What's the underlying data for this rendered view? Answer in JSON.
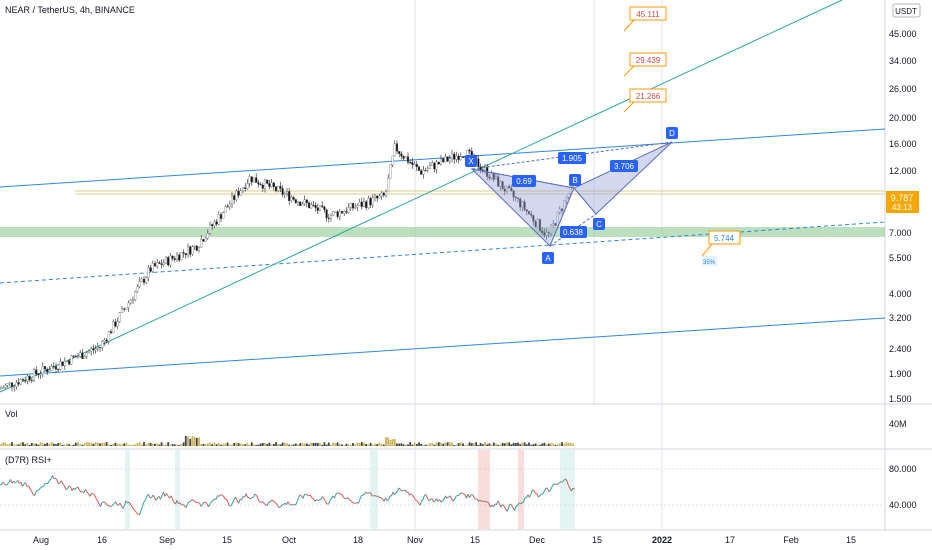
{
  "header": {
    "symbol_title": "NEAR / TetherUS, 4h, BINANCE",
    "currency_badge": "USDT"
  },
  "colors": {
    "up_candle": "#ffffff",
    "down_candle": "#222222",
    "wick": "#222222",
    "channel_blue": "#2e86de",
    "trend_green": "#26a69a",
    "support_zone": "#a5d6a7",
    "pattern_fill": "#9fa8da",
    "pattern_stroke": "#5c6bc0",
    "label_blue": "#2962ff",
    "target_orange": "#ff9800",
    "price_tag": "#f7a600",
    "rsi_up": "#26a69a",
    "rsi_down": "#ef5350"
  },
  "price_axis": {
    "labels": [
      "45.000",
      "34.000",
      "26.000",
      "20.000",
      "16.000",
      "12.000",
      "7.000",
      "5.500",
      "4.000",
      "3.200",
      "2.400",
      "1.900",
      "1.500"
    ],
    "current_price": "9.787",
    "countdown": "43:13"
  },
  "time_axis": {
    "labels": [
      "Aug",
      "16",
      "Sep",
      "15",
      "Oct",
      "18",
      "Nov",
      "15",
      "Dec",
      "15",
      "2022",
      "17",
      "Feb",
      "15"
    ]
  },
  "harmonic_pattern": {
    "points": [
      "X",
      "A",
      "B",
      "C",
      "D"
    ],
    "ratios": [
      "0.69",
      "1.905",
      "3.706",
      "0.638"
    ]
  },
  "targets": [
    "45.111",
    "29.439",
    "21.266"
  ],
  "support_label": "5.744",
  "support_pct": "35%",
  "volume_panel": {
    "title": "Vol",
    "axis_label": "40M"
  },
  "rsi_panel": {
    "title": "(D7R) RSI+",
    "axis_labels": [
      "80.000",
      "40.000"
    ]
  },
  "chart_data": {
    "type": "line",
    "title": "NEAR / TetherUS, 4h, BINANCE",
    "log_scale": true,
    "x": [
      "Aug 1",
      "Aug 16",
      "Sep 1",
      "Sep 7",
      "Sep 15",
      "Oct 1",
      "Oct 18",
      "Oct 24",
      "Nov 1",
      "Nov 15",
      "Dec 1",
      "Dec 4",
      "Dec 9"
    ],
    "series": [
      {
        "values": [
          1.6,
          2.3,
          4.5,
          5.5,
          10.0,
          7.2,
          8.5,
          13.0,
          10.5,
          12.5,
          8.0,
          6.0,
          9.787
        ]
      }
    ],
    "ylim": [
      1.5,
      50
    ],
    "grid": true
  }
}
